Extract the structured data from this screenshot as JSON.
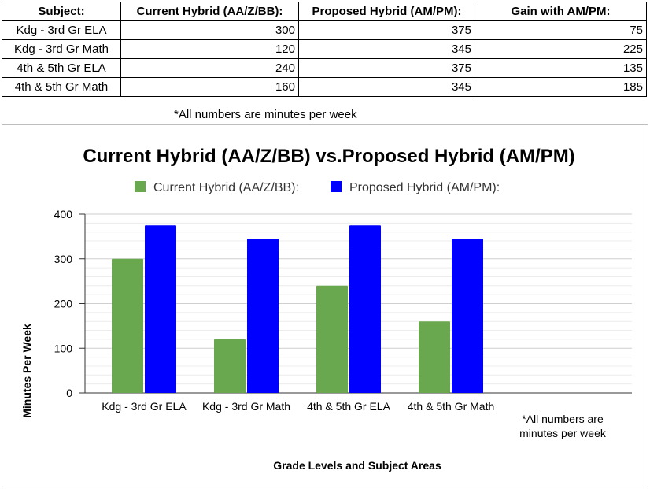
{
  "table": {
    "headers": [
      "Subject:",
      "Current Hybrid (AA/Z/BB):",
      "Proposed Hybrid (AM/PM):",
      "Gain with AM/PM:"
    ],
    "rows": [
      [
        "Kdg - 3rd Gr ELA",
        "300",
        "375",
        "75"
      ],
      [
        "Kdg - 3rd Gr Math",
        "120",
        "345",
        "225"
      ],
      [
        "4th & 5th Gr ELA",
        "240",
        "375",
        "135"
      ],
      [
        "4th & 5th Gr Math",
        "160",
        "345",
        "185"
      ]
    ]
  },
  "footnote": "*All numbers are minutes per week",
  "chart_data": {
    "type": "bar",
    "title": "Current Hybrid (AA/Z/BB) vs.Proposed Hybrid (AM/PM)",
    "xlabel": "Grade Levels and Subject Areas",
    "ylabel": "Minutes Per Week",
    "categories": [
      "Kdg - 3rd Gr ELA",
      "Kdg - 3rd Gr Math",
      "4th & 5th Gr ELA",
      "4th & 5th Gr Math"
    ],
    "series": [
      {
        "name": "Current Hybrid (AA/Z/BB):",
        "values": [
          300,
          120,
          240,
          160
        ],
        "color": "#6aa84f"
      },
      {
        "name": "Proposed Hybrid (AM/PM):",
        "values": [
          375,
          345,
          375,
          345
        ],
        "color": "#0000ff"
      }
    ],
    "ylim": [
      0,
      400
    ],
    "yticks": [
      "0",
      "100",
      "200",
      "300",
      "400"
    ],
    "grid": true,
    "legend_position": "top",
    "annotation": "*All numbers are minutes per week"
  }
}
